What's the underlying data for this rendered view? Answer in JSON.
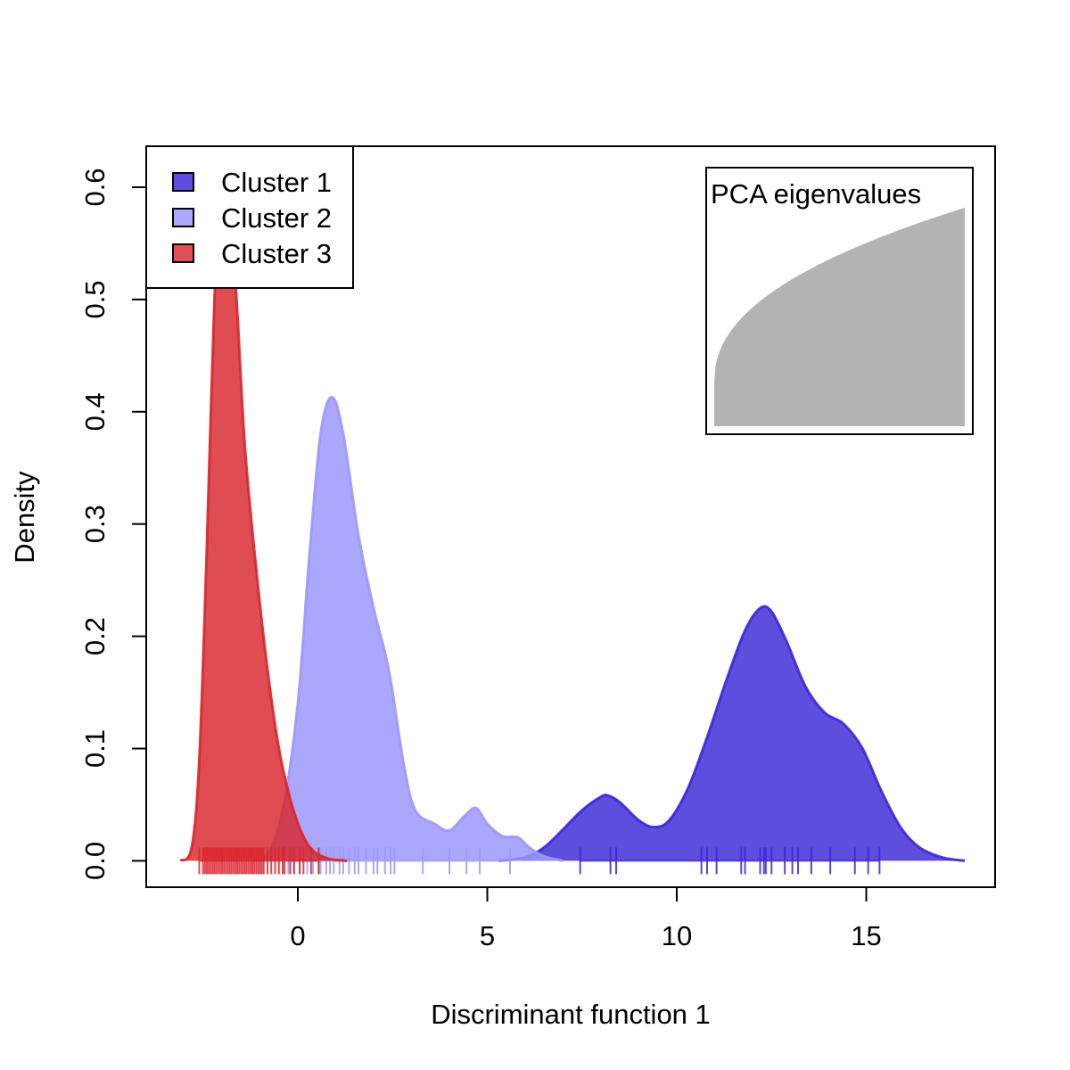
{
  "chart_data": {
    "type": "area",
    "title": "",
    "xlabel": "Discriminant function 1",
    "ylabel": "Density",
    "xlim": [
      -4,
      18.4
    ],
    "ylim": [
      -0.0235,
      0.6365
    ],
    "grid": false,
    "x_ticks": [
      {
        "value": 0,
        "label": "0"
      },
      {
        "value": 5,
        "label": "5"
      },
      {
        "value": 10,
        "label": "10"
      },
      {
        "value": 15,
        "label": "15"
      }
    ],
    "y_ticks": [
      {
        "value": 0.0,
        "label": "0.0"
      },
      {
        "value": 0.1,
        "label": "0.1"
      },
      {
        "value": 0.2,
        "label": "0.2"
      },
      {
        "value": 0.3,
        "label": "0.3"
      },
      {
        "value": 0.4,
        "label": "0.4"
      },
      {
        "value": 0.5,
        "label": "0.5"
      },
      {
        "value": 0.6,
        "label": "0.6"
      }
    ],
    "legend": {
      "position": "top-left",
      "entries": [
        {
          "label": "Cluster 1",
          "color": "#5d4de0"
        },
        {
          "label": "Cluster 2",
          "color": "#aaa8fd"
        },
        {
          "label": "Cluster 3",
          "color": "#e04f55"
        }
      ]
    },
    "series": [
      {
        "name": "Cluster 1",
        "fill": "#3b27d6",
        "stroke": "#3b27d6",
        "fill_opacity": 0.82,
        "density": [
          [
            5.3,
            0.0
          ],
          [
            6.0,
            0.003
          ],
          [
            6.5,
            0.012
          ],
          [
            7.0,
            0.028
          ],
          [
            7.5,
            0.045
          ],
          [
            8.0,
            0.057
          ],
          [
            8.2,
            0.058
          ],
          [
            8.5,
            0.052
          ],
          [
            9.0,
            0.036
          ],
          [
            9.4,
            0.03
          ],
          [
            9.8,
            0.036
          ],
          [
            10.3,
            0.065
          ],
          [
            10.8,
            0.11
          ],
          [
            11.3,
            0.16
          ],
          [
            11.8,
            0.205
          ],
          [
            12.2,
            0.225
          ],
          [
            12.5,
            0.222
          ],
          [
            12.9,
            0.195
          ],
          [
            13.4,
            0.155
          ],
          [
            13.9,
            0.132
          ],
          [
            14.4,
            0.122
          ],
          [
            14.9,
            0.1
          ],
          [
            15.4,
            0.062
          ],
          [
            15.9,
            0.03
          ],
          [
            16.4,
            0.012
          ],
          [
            17.0,
            0.003
          ],
          [
            17.6,
            0.0
          ]
        ],
        "rug": [
          7.45,
          8.25,
          8.4,
          10.65,
          10.8,
          11.05,
          11.7,
          11.8,
          12.2,
          12.3,
          12.35,
          12.5,
          12.85,
          13.05,
          13.2,
          13.55,
          14.05,
          14.7,
          15.05,
          15.35
        ]
      },
      {
        "name": "Cluster 2",
        "fill": "#9b98fc",
        "stroke": "#9b98fc",
        "fill_opacity": 0.85,
        "density": [
          [
            -1.2,
            0.0
          ],
          [
            -0.8,
            0.006
          ],
          [
            -0.4,
            0.045
          ],
          [
            0.0,
            0.14
          ],
          [
            0.3,
            0.27
          ],
          [
            0.6,
            0.38
          ],
          [
            0.9,
            0.413
          ],
          [
            1.2,
            0.38
          ],
          [
            1.6,
            0.29
          ],
          [
            2.0,
            0.225
          ],
          [
            2.4,
            0.17
          ],
          [
            2.8,
            0.085
          ],
          [
            3.1,
            0.045
          ],
          [
            3.6,
            0.033
          ],
          [
            4.0,
            0.027
          ],
          [
            4.4,
            0.04
          ],
          [
            4.7,
            0.047
          ],
          [
            5.0,
            0.033
          ],
          [
            5.4,
            0.022
          ],
          [
            5.8,
            0.021
          ],
          [
            6.1,
            0.012
          ],
          [
            6.5,
            0.004
          ],
          [
            7.0,
            0.0
          ]
        ],
        "rug": [
          -0.25,
          -0.1,
          0.05,
          0.25,
          0.4,
          0.55,
          0.6,
          0.75,
          0.85,
          0.95,
          1.1,
          1.2,
          1.35,
          1.5,
          1.6,
          1.8,
          2.0,
          2.1,
          2.3,
          2.45,
          2.55,
          3.3,
          4.0,
          4.45,
          4.8,
          5.6
        ]
      },
      {
        "name": "Cluster 3",
        "fill": "#d8262c",
        "stroke": "#d8262c",
        "fill_opacity": 0.82,
        "density": [
          [
            -3.1,
            0.0
          ],
          [
            -2.8,
            0.012
          ],
          [
            -2.6,
            0.09
          ],
          [
            -2.4,
            0.28
          ],
          [
            -2.2,
            0.5
          ],
          [
            -2.0,
            0.605
          ],
          [
            -1.8,
            0.59
          ],
          [
            -1.6,
            0.49
          ],
          [
            -1.4,
            0.37
          ],
          [
            -1.1,
            0.26
          ],
          [
            -0.8,
            0.17
          ],
          [
            -0.5,
            0.1
          ],
          [
            -0.2,
            0.055
          ],
          [
            0.1,
            0.025
          ],
          [
            0.4,
            0.009
          ],
          [
            0.8,
            0.002
          ],
          [
            1.3,
            0.0
          ]
        ],
        "rug": [
          -2.6,
          -2.5,
          -2.45,
          -2.4,
          -2.35,
          -2.3,
          -2.25,
          -2.2,
          -2.15,
          -2.1,
          -2.05,
          -2.0,
          -1.95,
          -1.9,
          -1.85,
          -1.8,
          -1.75,
          -1.7,
          -1.65,
          -1.6,
          -1.55,
          -1.5,
          -1.45,
          -1.4,
          -1.35,
          -1.3,
          -1.25,
          -1.2,
          -1.15,
          -1.1,
          -1.05,
          -1.0,
          -0.95,
          -0.9,
          -0.8,
          -0.7,
          -0.6,
          -0.5,
          -0.4,
          -0.35,
          -0.2,
          -0.1,
          0.05,
          0.15,
          0.35,
          0.55
        ]
      }
    ]
  },
  "inset": {
    "title": "PCA eigenvalues",
    "color": "#b3b3b3",
    "n_axes": 200,
    "cumulative_shape": "concave-increasing"
  }
}
